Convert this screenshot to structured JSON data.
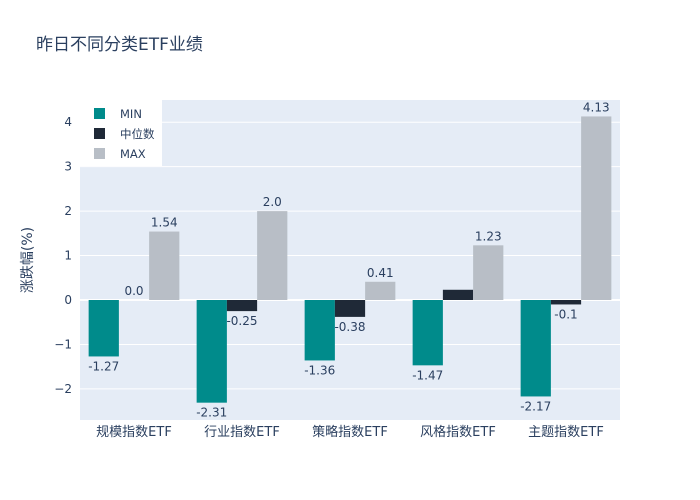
{
  "chart_data": {
    "type": "bar",
    "title": "昨日不同分类ETF业绩",
    "xlabel": "",
    "ylabel": "涨跌幅(%)",
    "categories": [
      "规模指数ETF",
      "行业指数ETF",
      "策略指数ETF",
      "风格指数ETF",
      "主题指数ETF"
    ],
    "series": [
      {
        "name": "MIN",
        "color": "#008b8b",
        "values": [
          -1.27,
          -2.31,
          -1.36,
          -1.47,
          -2.17
        ],
        "labels": [
          "-1.27",
          "-2.31",
          "-1.36",
          "-1.47",
          "-2.17"
        ]
      },
      {
        "name": "中位数",
        "color": "#1f2937",
        "values": [
          0.0,
          -0.25,
          -0.38,
          0.23,
          -0.1
        ],
        "labels": [
          "0.0",
          "-0.25",
          "-0.38",
          "",
          "-0.1"
        ]
      },
      {
        "name": "MAX",
        "color": "#b8bec6",
        "values": [
          1.54,
          2.0,
          0.41,
          1.23,
          4.13
        ],
        "labels": [
          "1.54",
          "2.0",
          "0.41",
          "1.23",
          "4.13"
        ]
      }
    ],
    "ylim": [
      -2.7,
      4.5
    ],
    "yticks": [
      -2,
      -1,
      0,
      1,
      2,
      3,
      4
    ],
    "ytick_labels": [
      "−2",
      "−1",
      "0",
      "1",
      "2",
      "3",
      "4"
    ],
    "grid": true,
    "legend": "top-left",
    "plot_bg": "#e5ecf6",
    "text_color": "#2a3f5f"
  }
}
